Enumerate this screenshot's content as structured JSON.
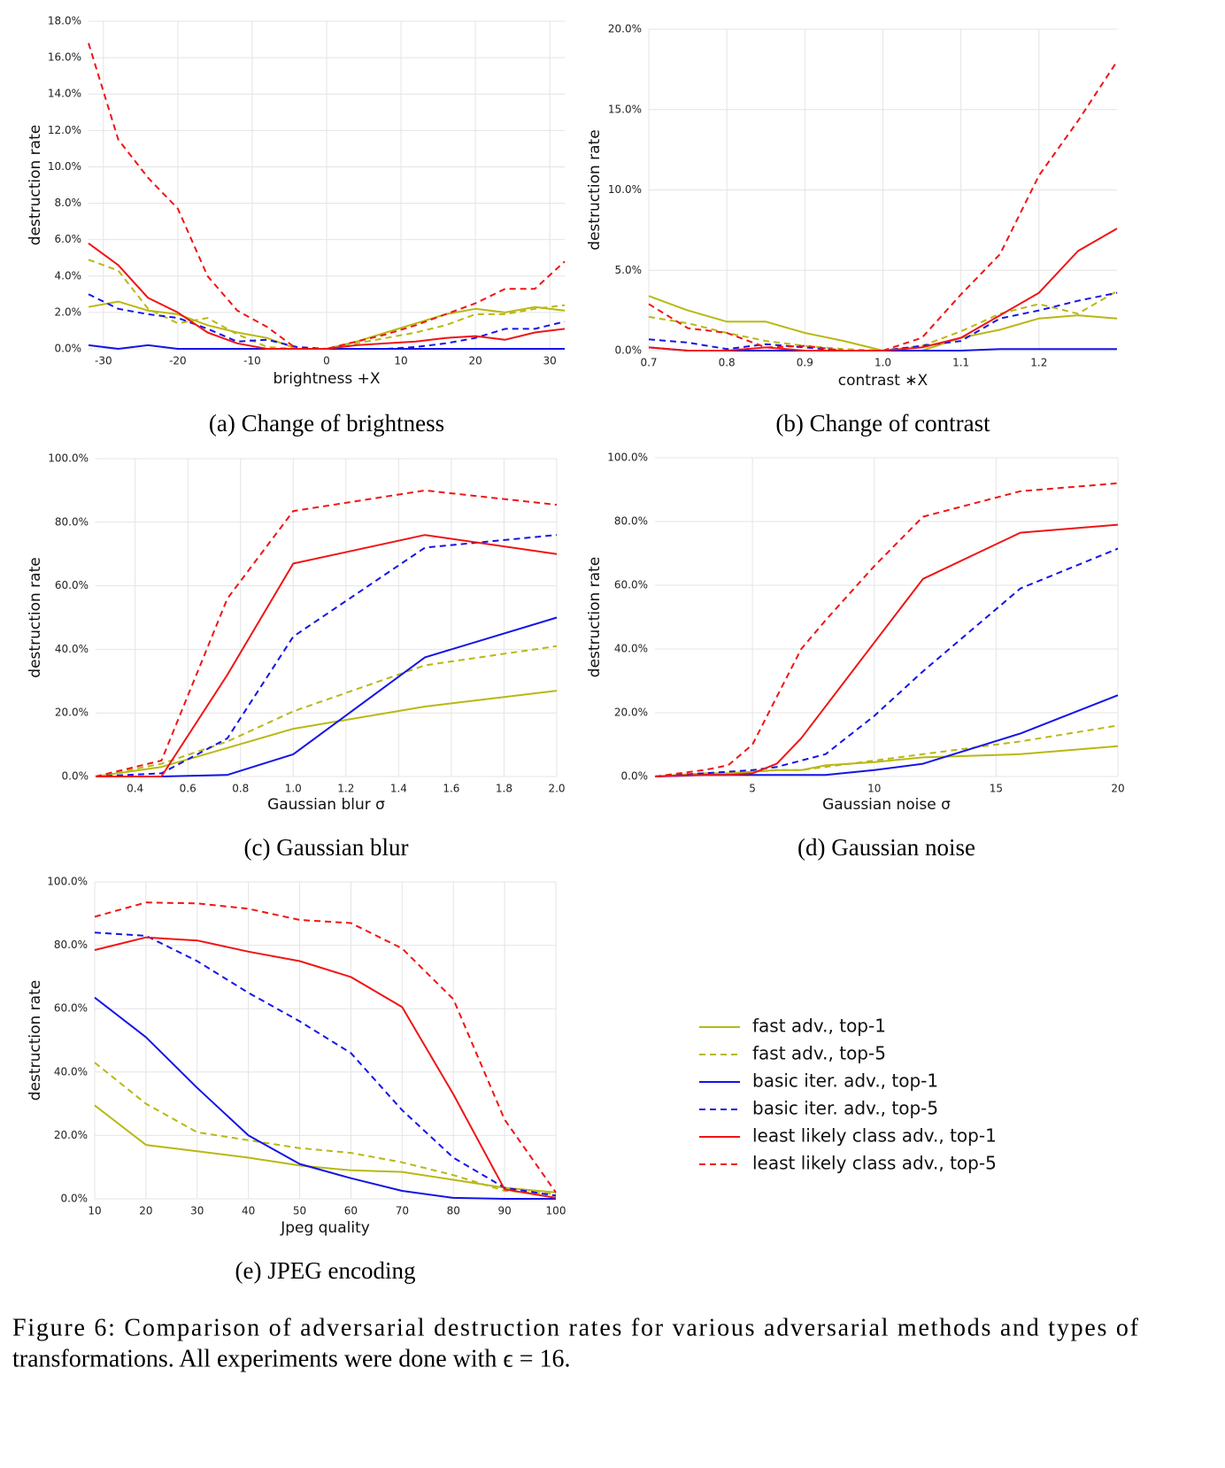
{
  "chart_data": [
    {
      "type": "line",
      "caption": "(a) Change of brightness",
      "xlabel": "brightness +X",
      "ylabel": "destruction rate",
      "x": [
        -32,
        -28,
        -24,
        -20,
        -16,
        -12,
        -8,
        -4,
        0,
        4,
        8,
        12,
        16,
        20,
        24,
        28,
        32
      ],
      "xlim": [
        -32,
        32
      ],
      "xticks": [
        -30,
        -20,
        -10,
        0,
        10,
        20,
        30
      ],
      "ylim": [
        0,
        18
      ],
      "yticks": [
        {
          "value": 0,
          "label": "0.0%"
        },
        {
          "value": 2,
          "label": "2.0%"
        },
        {
          "value": 4,
          "label": "4.0%"
        },
        {
          "value": 6,
          "label": "6.0%"
        },
        {
          "value": 8,
          "label": "8.0%"
        },
        {
          "value": 10,
          "label": "10.0%"
        },
        {
          "value": 12,
          "label": "12.0%"
        },
        {
          "value": 14,
          "label": "14.0%"
        },
        {
          "value": 16,
          "label": "16.0%"
        },
        {
          "value": 18,
          "label": "18.0%"
        }
      ],
      "grid": true,
      "series": [
        {
          "color": "#b8b814",
          "dash": false,
          "values": [
            2.3,
            2.6,
            2.1,
            1.9,
            1.3,
            0.9,
            0.6,
            0,
            0,
            0.4,
            0.9,
            1.4,
            1.9,
            2.2,
            2.0,
            2.3,
            2.1
          ]
        },
        {
          "color": "#b8b814",
          "dash": true,
          "values": [
            4.9,
            4.3,
            2.2,
            1.4,
            1.7,
            0.8,
            0.1,
            0,
            0,
            0.3,
            0.6,
            0.9,
            1.3,
            1.9,
            1.9,
            2.2,
            2.4
          ]
        },
        {
          "color": "#1414e6",
          "dash": false,
          "values": [
            0.2,
            0,
            0.2,
            0,
            0,
            0,
            0,
            0,
            0,
            0,
            0,
            0,
            0,
            0,
            0,
            0,
            0
          ]
        },
        {
          "color": "#1414e6",
          "dash": true,
          "values": [
            3.0,
            2.2,
            1.9,
            1.7,
            1.1,
            0.4,
            0.5,
            0.1,
            0,
            0,
            0,
            0.1,
            0.3,
            0.6,
            1.1,
            1.1,
            1.5
          ]
        },
        {
          "color": "#f01414",
          "dash": false,
          "values": [
            5.8,
            4.6,
            2.8,
            2.0,
            0.9,
            0.3,
            0,
            0,
            0,
            0.2,
            0.3,
            0.4,
            0.6,
            0.7,
            0.5,
            0.9,
            1.1
          ]
        },
        {
          "color": "#f01414",
          "dash": true,
          "values": [
            16.8,
            11.5,
            9.4,
            7.7,
            4.0,
            2.1,
            1.2,
            0,
            0,
            0.4,
            0.8,
            1.3,
            1.9,
            2.5,
            3.3,
            3.3,
            4.8
          ]
        }
      ]
    },
    {
      "type": "line",
      "caption": "(b) Change of contrast",
      "xlabel": "contrast ∗X",
      "ylabel": "destruction rate",
      "x": [
        0.7,
        0.75,
        0.8,
        0.85,
        0.9,
        0.95,
        1.0,
        1.05,
        1.1,
        1.15,
        1.2,
        1.25,
        1.3
      ],
      "xlim": [
        0.7,
        1.3
      ],
      "xticks": [
        0.7,
        0.8,
        0.9,
        {
          "value": 1,
          "label": "1.0"
        },
        1.1,
        1.2
      ],
      "ylim": [
        0,
        20
      ],
      "yticks": [
        {
          "value": 0,
          "label": "0.0%"
        },
        {
          "value": 5,
          "label": "5.0%"
        },
        {
          "value": 10,
          "label": "10.0%"
        },
        {
          "value": 15,
          "label": "15.0%"
        },
        {
          "value": 20,
          "label": "20.0%"
        }
      ],
      "grid": true,
      "series": [
        {
          "color": "#b8b814",
          "dash": false,
          "values": [
            3.4,
            2.5,
            1.8,
            1.8,
            1.1,
            0.6,
            0,
            0,
            0.8,
            1.3,
            2.0,
            2.2,
            2.0
          ]
        },
        {
          "color": "#b8b814",
          "dash": true,
          "values": [
            2.1,
            1.7,
            1.1,
            0.6,
            0.3,
            0.1,
            0,
            0.3,
            1.2,
            2.3,
            2.9,
            2.3,
            3.7
          ]
        },
        {
          "color": "#1414e6",
          "dash": false,
          "values": [
            0.2,
            0,
            0,
            0,
            0,
            0,
            0,
            0,
            0,
            0.1,
            0.1,
            0.1,
            0.1
          ]
        },
        {
          "color": "#1414e6",
          "dash": true,
          "values": [
            0.7,
            0.5,
            0.1,
            0.4,
            0.2,
            0,
            0,
            0.3,
            0.6,
            2.0,
            2.5,
            3.1,
            3.6
          ]
        },
        {
          "color": "#f01414",
          "dash": false,
          "values": [
            0.2,
            0,
            0,
            0.2,
            0,
            0,
            0,
            0.2,
            0.8,
            2.2,
            3.6,
            6.2,
            7.6
          ]
        },
        {
          "color": "#f01414",
          "dash": true,
          "values": [
            2.9,
            1.4,
            1.1,
            0.2,
            0.3,
            0,
            0,
            0.8,
            3.5,
            6.0,
            10.9,
            14.3,
            18.0
          ]
        }
      ]
    },
    {
      "type": "line",
      "caption": "(c) Gaussian blur",
      "xlabel": "Gaussian blur σ",
      "ylabel": "destruction rate",
      "x": [
        0.25,
        0.5,
        0.75,
        1.0,
        1.5,
        2.0
      ],
      "xlim": [
        0.25,
        2.0
      ],
      "xticks": [
        0.4,
        0.6,
        0.8,
        {
          "value": 1,
          "label": "1.0"
        },
        1.2,
        1.4,
        1.6,
        1.8,
        {
          "value": 2,
          "label": "2.0"
        }
      ],
      "ylim": [
        0,
        100
      ],
      "yticks": [
        {
          "value": 0,
          "label": "0.0%"
        },
        {
          "value": 20,
          "label": "20.0%"
        },
        {
          "value": 40,
          "label": "40.0%"
        },
        {
          "value": 60,
          "label": "60.0%"
        },
        {
          "value": 80,
          "label": "80.0%"
        },
        {
          "value": 100,
          "label": "100.0%"
        }
      ],
      "grid": true,
      "series": [
        {
          "color": "#b8b814",
          "dash": false,
          "values": [
            0,
            3,
            9,
            15,
            22,
            27
          ]
        },
        {
          "color": "#b8b814",
          "dash": true,
          "values": [
            0,
            4,
            11,
            20.5,
            35,
            41
          ]
        },
        {
          "color": "#1414e6",
          "dash": false,
          "values": [
            0,
            0,
            0.5,
            7,
            37.5,
            50
          ]
        },
        {
          "color": "#1414e6",
          "dash": true,
          "values": [
            0,
            1,
            12,
            44,
            72,
            76
          ]
        },
        {
          "color": "#f01414",
          "dash": false,
          "values": [
            0,
            0,
            32,
            67,
            76,
            70
          ]
        },
        {
          "color": "#f01414",
          "dash": true,
          "values": [
            0,
            5,
            56,
            83.5,
            90,
            85.5
          ]
        }
      ]
    },
    {
      "type": "line",
      "caption": "(d) Gaussian noise",
      "xlabel": "Gaussian noise σ",
      "ylabel": "destruction rate",
      "x": [
        1,
        2,
        3,
        4,
        5,
        6,
        7,
        8,
        10,
        12,
        16,
        20
      ],
      "xlim": [
        1,
        20
      ],
      "xticks": [
        5,
        10,
        15,
        20
      ],
      "ylim": [
        0,
        100
      ],
      "yticks": [
        {
          "value": 0,
          "label": "0.0%"
        },
        {
          "value": 20,
          "label": "20.0%"
        },
        {
          "value": 40,
          "label": "40.0%"
        },
        {
          "value": 60,
          "label": "60.0%"
        },
        {
          "value": 80,
          "label": "80.0%"
        },
        {
          "value": 100,
          "label": "100.0%"
        }
      ],
      "grid": true,
      "series": [
        {
          "color": "#b8b814",
          "dash": false,
          "values": [
            0,
            0.5,
            1,
            1,
            1.5,
            2,
            2,
            3.5,
            4.5,
            6,
            7,
            9.5
          ]
        },
        {
          "color": "#b8b814",
          "dash": true,
          "values": [
            0,
            0.5,
            1,
            1,
            1.5,
            2,
            2,
            3,
            5,
            7,
            11,
            16
          ]
        },
        {
          "color": "#1414e6",
          "dash": false,
          "values": [
            0,
            0.2,
            0.5,
            0.5,
            0.5,
            0.5,
            0.5,
            0.5,
            2,
            4,
            13.5,
            25.5
          ]
        },
        {
          "color": "#1414e6",
          "dash": true,
          "values": [
            0,
            0.5,
            1,
            1.5,
            2,
            3,
            5,
            7,
            19,
            33,
            59,
            71.5
          ]
        },
        {
          "color": "#f01414",
          "dash": false,
          "values": [
            0,
            0.3,
            0.5,
            0.5,
            1,
            4,
            12,
            22,
            42,
            62,
            76.5,
            79
          ]
        },
        {
          "color": "#f01414",
          "dash": true,
          "values": [
            0,
            1,
            2,
            3.5,
            10,
            25,
            40,
            49,
            66,
            81.5,
            89.5,
            92
          ]
        }
      ]
    },
    {
      "type": "line",
      "caption": "(e) JPEG encoding",
      "xlabel": "Jpeg quality",
      "ylabel": "destruction rate",
      "x": [
        10,
        20,
        30,
        40,
        50,
        60,
        70,
        80,
        90,
        100
      ],
      "xlim": [
        10,
        100
      ],
      "xticks": [
        10,
        20,
        30,
        40,
        50,
        60,
        70,
        80,
        90,
        100
      ],
      "ylim": [
        0,
        100
      ],
      "yticks": [
        {
          "value": 0,
          "label": "0.0%"
        },
        {
          "value": 20,
          "label": "20.0%"
        },
        {
          "value": 40,
          "label": "40.0%"
        },
        {
          "value": 60,
          "label": "60.0%"
        },
        {
          "value": 80,
          "label": "80.0%"
        },
        {
          "value": 100,
          "label": "100.0%"
        }
      ],
      "grid": true,
      "series": [
        {
          "color": "#b8b814",
          "dash": false,
          "values": [
            29.5,
            17,
            15,
            13,
            10.5,
            9,
            8.5,
            6,
            3.5,
            2
          ]
        },
        {
          "color": "#b8b814",
          "dash": true,
          "values": [
            43,
            30,
            21,
            18.5,
            16,
            14.5,
            11.5,
            7.5,
            2.5,
            1.5
          ]
        },
        {
          "color": "#1414e6",
          "dash": false,
          "values": [
            63.5,
            51,
            35,
            20,
            11,
            6.5,
            2.5,
            0.3,
            0,
            0
          ]
        },
        {
          "color": "#1414e6",
          "dash": true,
          "values": [
            84,
            83,
            75,
            65,
            56,
            46,
            28,
            13,
            3.5,
            1
          ]
        },
        {
          "color": "#f01414",
          "dash": false,
          "values": [
            78.5,
            82.5,
            81.5,
            78,
            75,
            70,
            60.5,
            33,
            3,
            0.3
          ]
        },
        {
          "color": "#f01414",
          "dash": true,
          "values": [
            89,
            93.5,
            93.2,
            91.5,
            88,
            87,
            79,
            63,
            25,
            2
          ]
        }
      ]
    }
  ],
  "legend": {
    "entries": [
      {
        "name": "fast adv., top-1",
        "color": "#b8b814",
        "dash": false
      },
      {
        "name": "fast adv., top-5",
        "color": "#b8b814",
        "dash": true
      },
      {
        "name": "basic iter. adv., top-1",
        "color": "#1414e6",
        "dash": false
      },
      {
        "name": "basic iter. adv., top-5",
        "color": "#1414e6",
        "dash": true
      },
      {
        "name": "least likely class adv., top-1",
        "color": "#f01414",
        "dash": false
      },
      {
        "name": "least likely class adv., top-5",
        "color": "#f01414",
        "dash": true
      }
    ]
  },
  "figure_caption": [
    "Figure 6: Comparison of adversarial destruction rates for various adversarial methods and types of",
    "transformations. All experiments were done with ϵ = 16."
  ]
}
